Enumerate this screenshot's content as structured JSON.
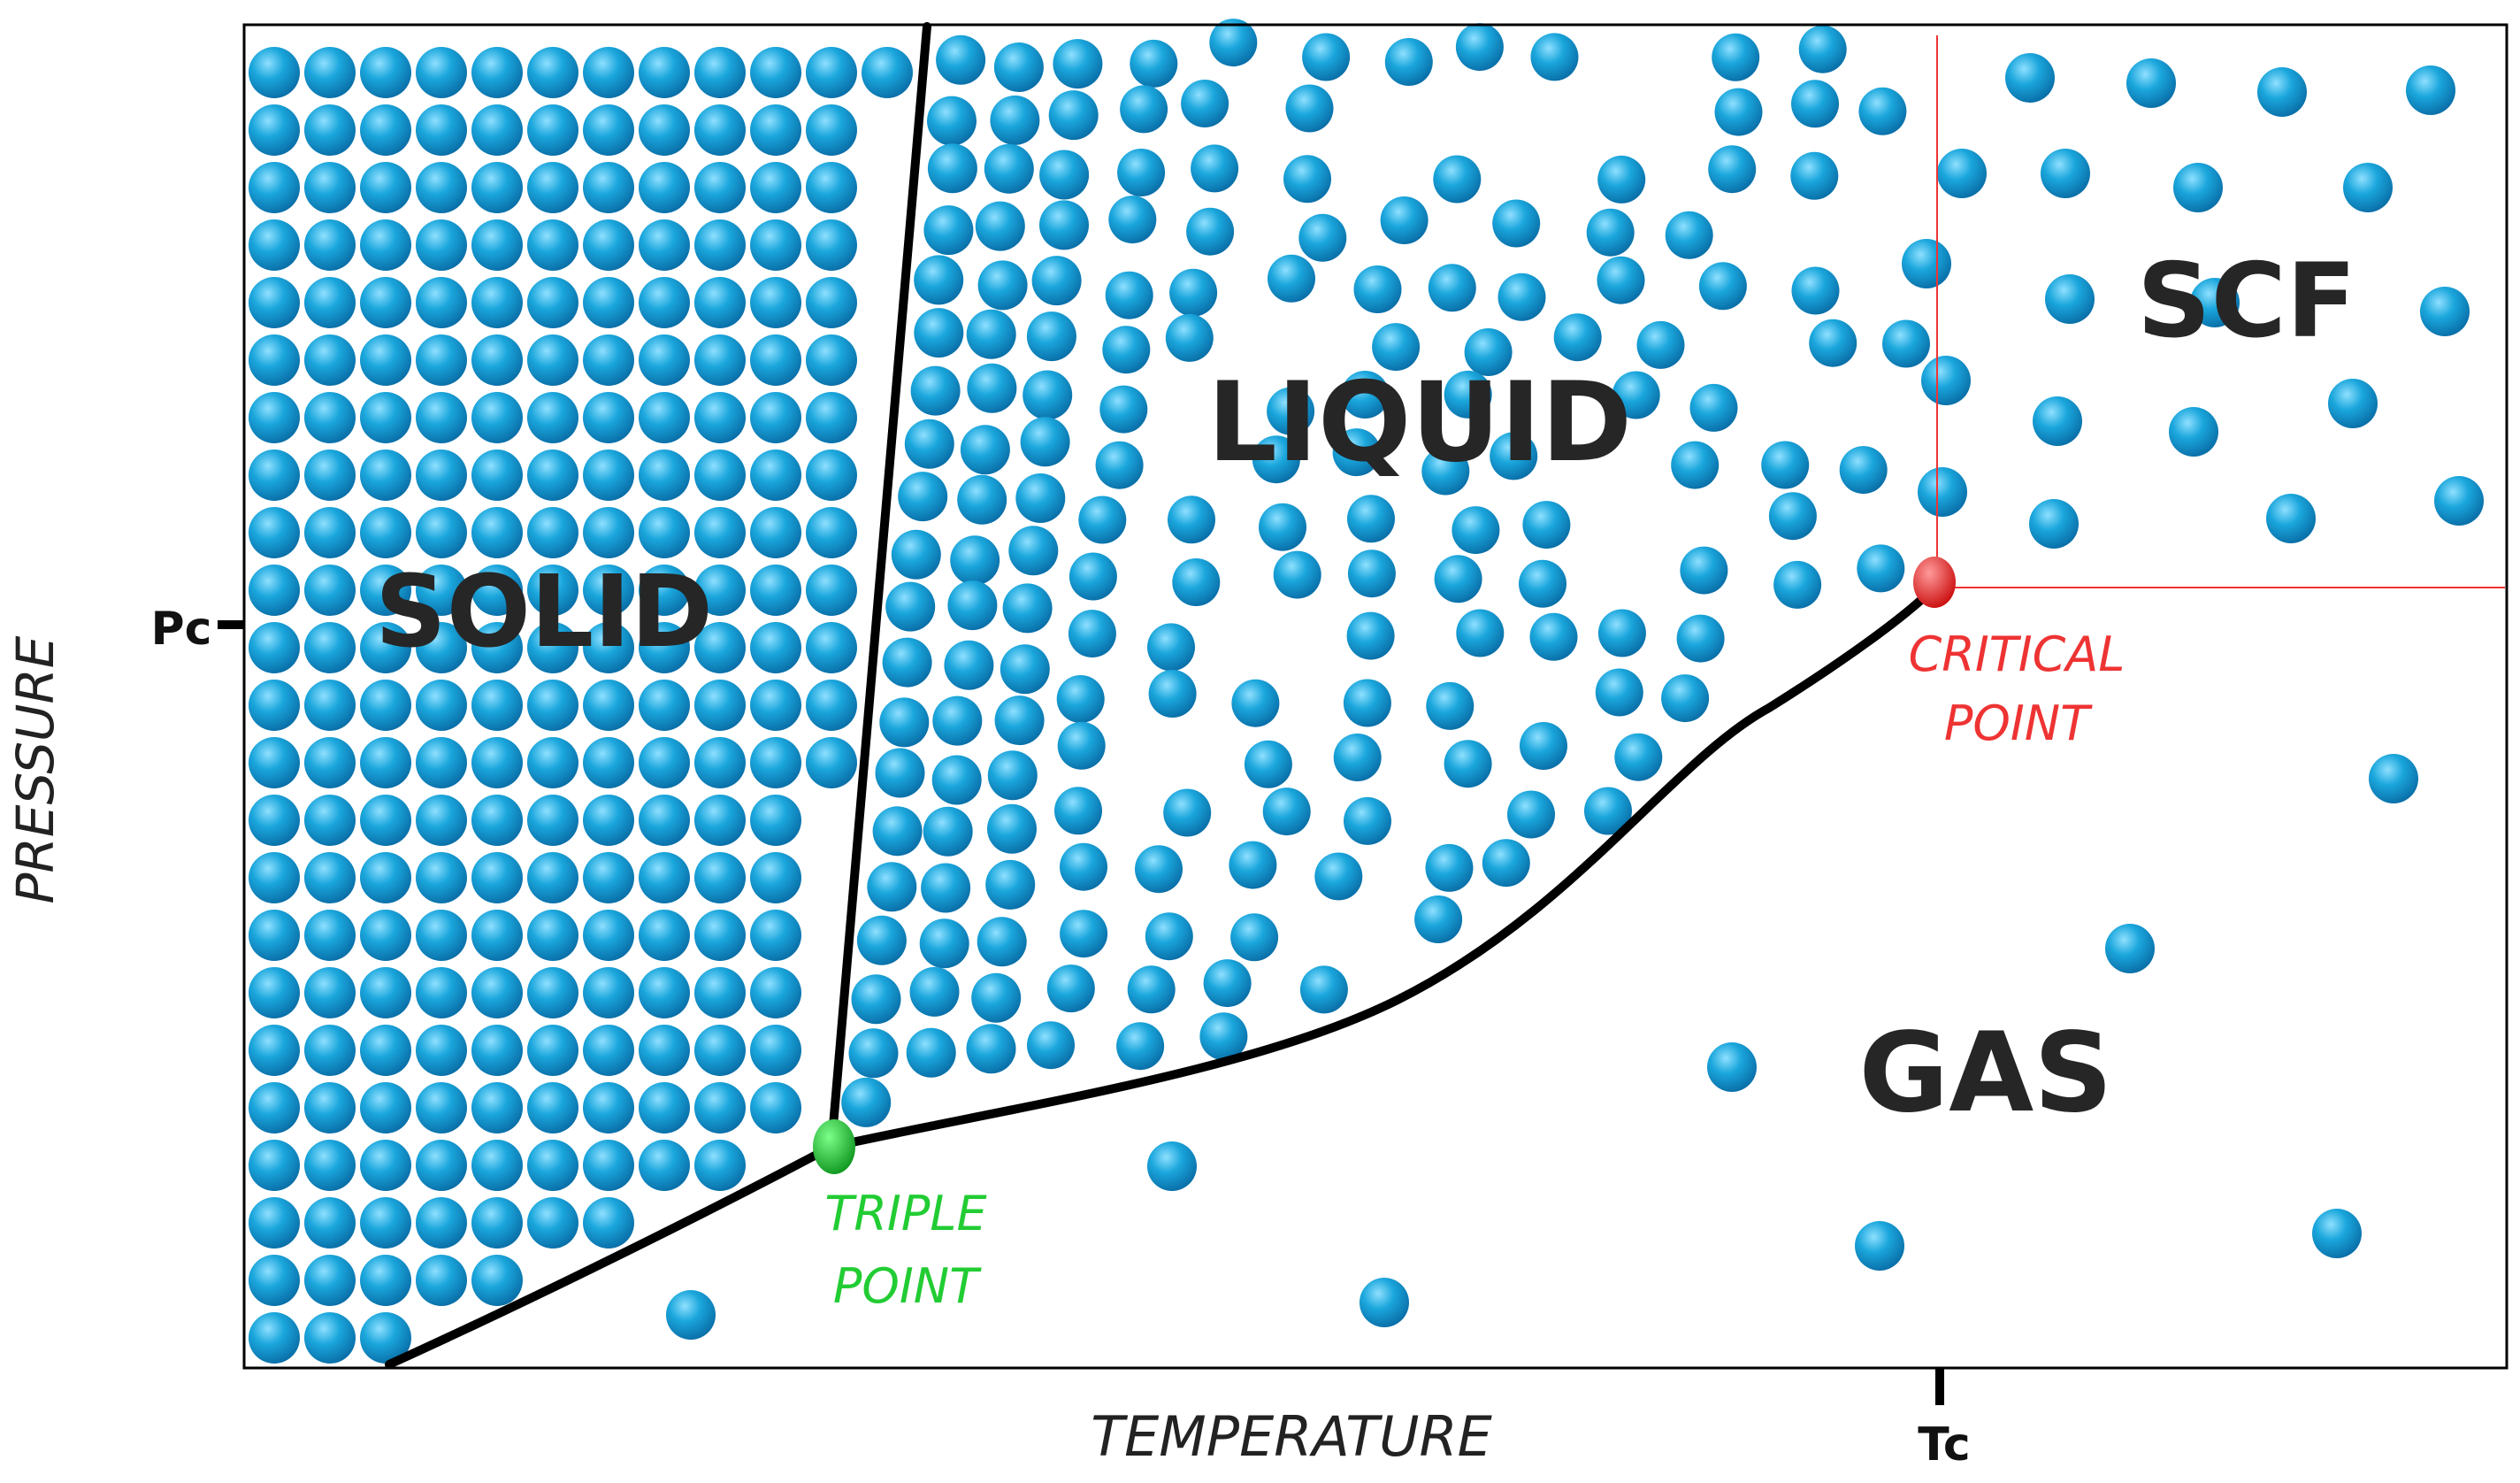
{
  "axes": {
    "x_title": "TEMPERATURE",
    "y_title": "PRESSURE",
    "x_marker": "Tc",
    "y_marker": "Pc"
  },
  "regions": {
    "solid": "SOLID",
    "liquid": "LIQUID",
    "gas": "GAS",
    "scf": "SCF"
  },
  "points": {
    "triple": {
      "line1": "TRIPLE",
      "line2": "POINT"
    },
    "critical": {
      "line1": "CRITICAL",
      "line2": "POINT"
    }
  },
  "colors": {
    "particle": "#1aa6dc",
    "particle_highlight": "#8fe0ff",
    "particle_shadow": "#0a6fa8",
    "triple_point": "#22cc33",
    "critical_point": "#ee3333",
    "curve": "#000000",
    "critical_guides": "#ee3333",
    "frame": "#000000"
  }
}
